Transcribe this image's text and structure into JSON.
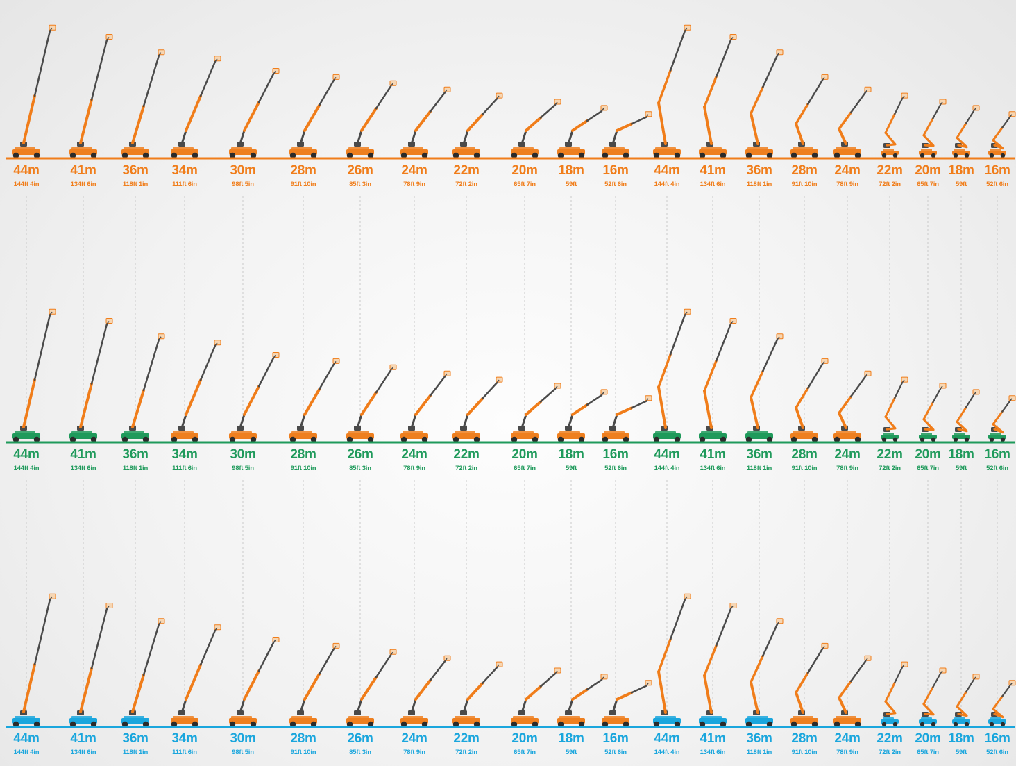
{
  "rows": [
    {
      "name": "orange",
      "color": "#f07d1a",
      "items": [
        {
          "m": "44m",
          "ft": "144ft 4in",
          "boom": "straight"
        },
        {
          "m": "41m",
          "ft": "134ft 6in",
          "boom": "straight"
        },
        {
          "m": "36m",
          "ft": "118ft 1in",
          "boom": "straight"
        },
        {
          "m": "34m",
          "ft": "111ft 6in",
          "boom": "jib"
        },
        {
          "m": "30m",
          "ft": "98ft 5in",
          "boom": "jib"
        },
        {
          "m": "28m",
          "ft": "91ft 10in",
          "boom": "jib"
        },
        {
          "m": "26m",
          "ft": "85ft 3in",
          "boom": "jib"
        },
        {
          "m": "24m",
          "ft": "78ft 9in",
          "boom": "jib"
        },
        {
          "m": "22m",
          "ft": "72ft 2in",
          "boom": "jib"
        },
        {
          "m": "20m",
          "ft": "65ft 7in",
          "boom": "jib"
        },
        {
          "m": "18m",
          "ft": "59ft",
          "boom": "jib"
        },
        {
          "m": "16m",
          "ft": "52ft 6in",
          "boom": "jib"
        },
        {
          "m": "44m",
          "ft": "144ft 4in",
          "boom": "articulated"
        },
        {
          "m": "41m",
          "ft": "134ft 6in",
          "boom": "articulated"
        },
        {
          "m": "36m",
          "ft": "118ft 1in",
          "boom": "articulated"
        },
        {
          "m": "28m",
          "ft": "91ft 10in",
          "boom": "articulated"
        },
        {
          "m": "24m",
          "ft": "78ft 9in",
          "boom": "articulated"
        },
        {
          "m": "22m",
          "ft": "72ft 2in",
          "boom": "zigzag"
        },
        {
          "m": "20m",
          "ft": "65ft 7in",
          "boom": "zigzag"
        },
        {
          "m": "18m",
          "ft": "59ft",
          "boom": "zigzag"
        },
        {
          "m": "16m",
          "ft": "52ft 6in",
          "boom": "zigzag"
        }
      ]
    },
    {
      "name": "green",
      "color": "#1f9a5b",
      "items": [
        {
          "m": "44m",
          "ft": "144ft 4in",
          "boom": "straight"
        },
        {
          "m": "41m",
          "ft": "134ft 6in",
          "boom": "straight"
        },
        {
          "m": "36m",
          "ft": "118ft 1in",
          "boom": "straight"
        },
        {
          "m": "34m",
          "ft": "111ft 6in",
          "boom": "jib"
        },
        {
          "m": "30m",
          "ft": "98ft 5in",
          "boom": "jib"
        },
        {
          "m": "28m",
          "ft": "91ft 10in",
          "boom": "jib"
        },
        {
          "m": "26m",
          "ft": "85ft 3in",
          "boom": "jib"
        },
        {
          "m": "24m",
          "ft": "78ft 9in",
          "boom": "jib"
        },
        {
          "m": "22m",
          "ft": "72ft 2in",
          "boom": "jib"
        },
        {
          "m": "20m",
          "ft": "65ft 7in",
          "boom": "jib"
        },
        {
          "m": "18m",
          "ft": "59ft",
          "boom": "jib"
        },
        {
          "m": "16m",
          "ft": "52ft 6in",
          "boom": "jib"
        },
        {
          "m": "44m",
          "ft": "144ft 4in",
          "boom": "articulated"
        },
        {
          "m": "41m",
          "ft": "134ft 6in",
          "boom": "articulated"
        },
        {
          "m": "36m",
          "ft": "118ft 1in",
          "boom": "articulated"
        },
        {
          "m": "28m",
          "ft": "91ft 10in",
          "boom": "articulated"
        },
        {
          "m": "24m",
          "ft": "78ft 9in",
          "boom": "articulated"
        },
        {
          "m": "22m",
          "ft": "72ft 2in",
          "boom": "zigzag"
        },
        {
          "m": "20m",
          "ft": "65ft 7in",
          "boom": "zigzag"
        },
        {
          "m": "18m",
          "ft": "59ft",
          "boom": "zigzag"
        },
        {
          "m": "16m",
          "ft": "52ft 6in",
          "boom": "zigzag"
        }
      ]
    },
    {
      "name": "blue",
      "color": "#1aa6dd",
      "items": [
        {
          "m": "44m",
          "ft": "144ft 4in",
          "boom": "straight"
        },
        {
          "m": "41m",
          "ft": "134ft 6in",
          "boom": "straight"
        },
        {
          "m": "36m",
          "ft": "118ft 1in",
          "boom": "straight"
        },
        {
          "m": "34m",
          "ft": "111ft 6in",
          "boom": "jib"
        },
        {
          "m": "30m",
          "ft": "98ft 5in",
          "boom": "jib"
        },
        {
          "m": "28m",
          "ft": "91ft 10in",
          "boom": "jib"
        },
        {
          "m": "26m",
          "ft": "85ft 3in",
          "boom": "jib"
        },
        {
          "m": "24m",
          "ft": "78ft 9in",
          "boom": "jib"
        },
        {
          "m": "22m",
          "ft": "72ft 2in",
          "boom": "jib"
        },
        {
          "m": "20m",
          "ft": "65ft 7in",
          "boom": "jib"
        },
        {
          "m": "18m",
          "ft": "59ft",
          "boom": "jib"
        },
        {
          "m": "16m",
          "ft": "52ft 6in",
          "boom": "jib"
        },
        {
          "m": "44m",
          "ft": "144ft 4in",
          "boom": "articulated"
        },
        {
          "m": "41m",
          "ft": "134ft 6in",
          "boom": "articulated"
        },
        {
          "m": "36m",
          "ft": "118ft 1in",
          "boom": "articulated"
        },
        {
          "m": "28m",
          "ft": "91ft 10in",
          "boom": "articulated"
        },
        {
          "m": "24m",
          "ft": "78ft 9in",
          "boom": "articulated"
        },
        {
          "m": "22m",
          "ft": "72ft 2in",
          "boom": "zigzag"
        },
        {
          "m": "20m",
          "ft": "65ft 7in",
          "boom": "zigzag"
        },
        {
          "m": "18m",
          "ft": "59ft",
          "boom": "zigzag"
        },
        {
          "m": "16m",
          "ft": "52ft 6in",
          "boom": "zigzag"
        }
      ]
    }
  ],
  "colors": {
    "boom_orange": "#f07d1a",
    "boom_dark": "#4a4a4a",
    "chassis_orange": "#ee7f1f",
    "wheel": "#2b2b2b",
    "guide_line": "#c9c9c9"
  }
}
